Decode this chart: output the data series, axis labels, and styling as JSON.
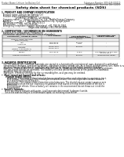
{
  "bg_color": "#ffffff",
  "header_left": "Product Name: Lithium Ion Battery Cell",
  "header_right1": "Substance Number: SDS-049-000010",
  "header_right2": "Established / Revision: Dec.1.2010",
  "main_title": "Safety data sheet for chemical products (SDS)",
  "section1_title": "1. PRODUCT AND COMPANY IDENTIFICATION",
  "s1_items": [
    "  Product name: Lithium Ion Battery Cell",
    "  Product code: Cylindrical-type cell",
    "                    UF186500, UF18650L, UF18650A",
    "  Company name:      Sanyo Electric Co., Ltd., Mobile Energy Company",
    "  Address:           20-2-1  Kannonaura, Sumoto-City, Hyogo, Japan",
    "  Telephone number:     +81-799-26-4111",
    "  Fax number:    +81-799-26-4120",
    "  Emergency telephone number (Weekdays) +81-799-26-2062",
    "                                       (Night and holiday) +81-799-26-4101"
  ],
  "section2_title": "2. COMPOSITION / INFORMATION ON INGREDIENTS",
  "s2_intro": "  Substance or preparation: Preparation",
  "s2_sub": "  Information about the chemical nature of product:",
  "table_cols": [
    4,
    68,
    110,
    152,
    196
  ],
  "table_headers": [
    "Component / chemical name",
    "CAS number",
    "Concentration /\nConcentration range",
    "Classification and\nhazard labeling"
  ],
  "table_rows": [
    [
      "Lithium cobalt tantalite\n(LiMn-Co(PO4))",
      "-",
      "30-40%",
      "-"
    ],
    [
      "Iron\nAluminum",
      "7439-89-6\n7429-90-5",
      "10-20%\n2-8%",
      "-\n-"
    ],
    [
      "Graphite\n(Mixed in graphite-1)\n(AI-Mo graphite-1)",
      "77769-42-5\n77769-44-2",
      "10-20%",
      "-"
    ],
    [
      "Copper",
      "7440-50-8",
      "5-15%",
      "Sensitization of the skin\ngroup No.2"
    ],
    [
      "Organic electrolyte",
      "-",
      "10-20%",
      "Inflammable liquid"
    ]
  ],
  "section3_title": "3. HAZARDS IDENTIFICATION",
  "s3_paras": [
    "   For the battery cell, chemical materials are stored in a hermetically sealed metal case, designed to withstand",
    "   temperature changes, pressure variations, vibrations during normal use. As a result, during normal use, there is no",
    "   physical danger of ignition or explosion and there is no danger of hazardous material leakage.",
    "   However, if exposed to a fire, added mechanical shocks, decomposed, when electric-shock,or by misuse,",
    "   the gas inside cannot be operated. The battery cell case will be breached of fire-patterns, hazardous",
    "   materials may be released.",
    "   Moreover, if heated strongly by the surrounding fire, acid gas may be emitted."
  ],
  "s3_bullet1": "  Most important hazard and effects:",
  "s3_human": "      Human health effects:",
  "s3_human_items": [
    "         Inhalation: The release of the electrolyte has an anesthesia action and stimulates in respiratory tract.",
    "         Skin contact: The release of the electrolyte stimulates a skin. The electrolyte skin contact causes a",
    "         sore and stimulation on the skin.",
    "         Eye contact: The release of the electrolyte stimulates eyes. The electrolyte eye contact causes a sore",
    "         and stimulation on the eye. Especially, a substance that causes a strong inflammation of the eye is",
    "         contained.",
    "         Environmental effects: Since a battery cell remains in the environment, do not throw out it into the",
    "         environment."
  ],
  "s3_bullet2": "  Specific hazards:",
  "s3_specific_items": [
    "      If the electrolyte contacts with water, it will generate detrimental hydrogen fluoride.",
    "      Since the seal electrolyte is inflammable liquid, do not bring close to fire."
  ]
}
